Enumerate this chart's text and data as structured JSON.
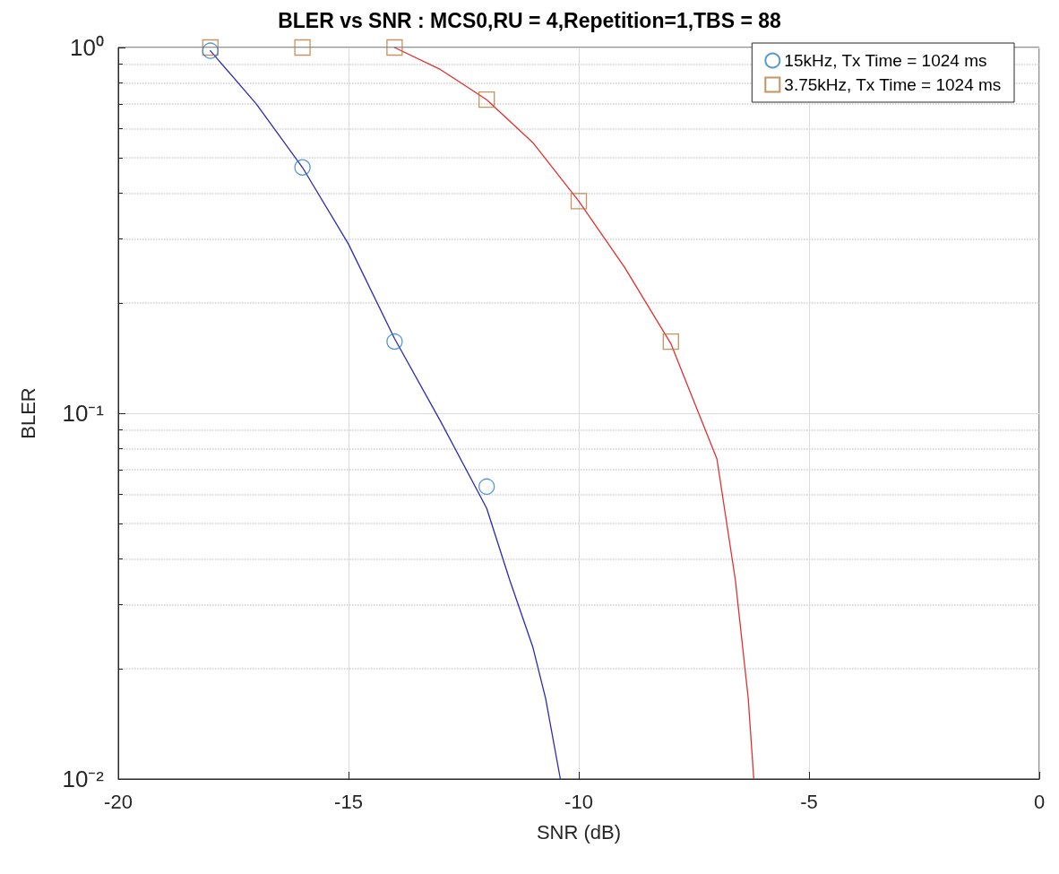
{
  "chart_data": {
    "type": "scatter",
    "title": "BLER vs SNR : MCS0,RU = 4,Repetition=1,TBS = 88",
    "xlabel": "SNR (dB)",
    "ylabel": "BLER",
    "log": "y",
    "grid": true,
    "legend": "top right",
    "xlim": [
      -20,
      0
    ],
    "xticks": [
      -20,
      -15,
      -10,
      -5,
      0
    ],
    "ylim": [
      0.01,
      1
    ],
    "yticks": [
      {
        "value": 0.01,
        "label": "10⁻²"
      },
      {
        "value": 0.1,
        "label": "10⁻¹"
      },
      {
        "value": 1,
        "label": "10⁰"
      }
    ],
    "series": [
      {
        "name": "15kHz, Tx Time = 1024 ms",
        "marker": "circle",
        "color": "#2a7fc0",
        "x": [
          -18,
          -16,
          -14,
          -12
        ],
        "values": [
          0.98,
          0.47,
          0.157,
          0.063
        ]
      },
      {
        "name": "3.75kHz, Tx Time = 1024 ms",
        "marker": "square",
        "color": "#b8783a",
        "x": [
          -18,
          -16,
          -14,
          -12,
          -10,
          -8
        ],
        "values": [
          1,
          1,
          1,
          0.72,
          0.38,
          0.157
        ]
      },
      {
        "type": "line",
        "marker": "none",
        "color": "#2b2bb0",
        "x": [
          -18,
          -17,
          -16,
          -15,
          -14,
          -13,
          -12,
          -11.5,
          -11,
          -10.72,
          -10.4
        ],
        "values": [
          0.98,
          0.7,
          0.47,
          0.29,
          0.16,
          0.095,
          0.055,
          0.035,
          0.023,
          0.0166,
          0.01
        ]
      },
      {
        "type": "line",
        "marker": "none",
        "color": "#e03030",
        "x": [
          -14,
          -13,
          -12,
          -11,
          -10,
          -9,
          -8,
          -7,
          -6.6,
          -6.32,
          -6.2
        ],
        "values": [
          1,
          0.87,
          0.72,
          0.55,
          0.38,
          0.25,
          0.155,
          0.075,
          0.035,
          0.0166,
          0.01
        ]
      }
    ]
  }
}
